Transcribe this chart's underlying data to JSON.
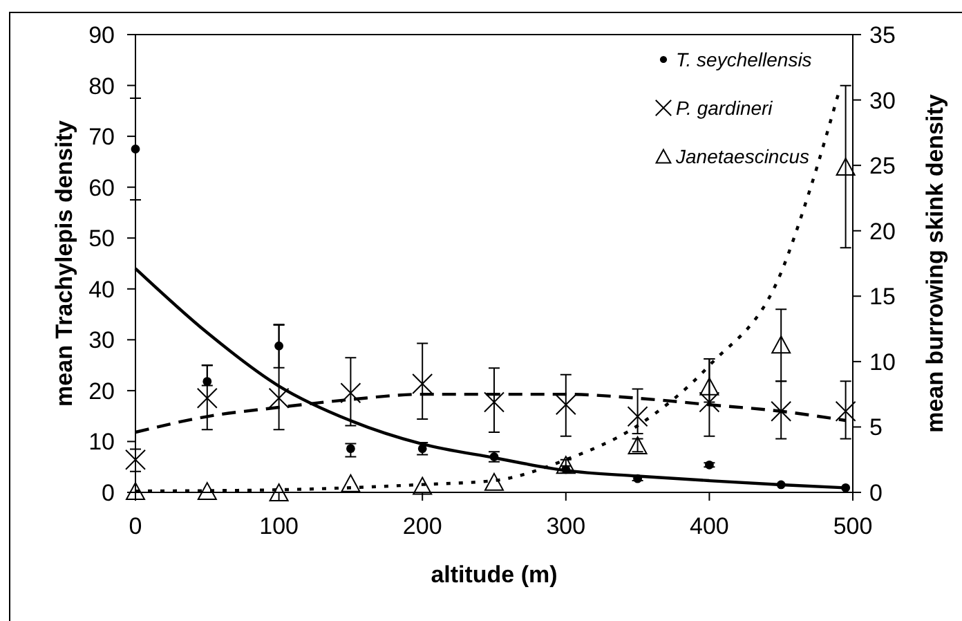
{
  "chart_data": {
    "type": "scatter",
    "xlabel": "altitude (m)",
    "ylabel": "mean Trachylepis density",
    "y2label": "mean burrowing skink density",
    "xlim": [
      0,
      500
    ],
    "xticks": [
      0,
      100,
      200,
      300,
      400,
      500
    ],
    "ylim": [
      0,
      90
    ],
    "yticks": [
      0,
      10,
      20,
      30,
      40,
      50,
      60,
      70,
      80,
      90
    ],
    "y2lim": [
      0,
      35
    ],
    "y2ticks": [
      0,
      5,
      10,
      15,
      20,
      25,
      30,
      35
    ],
    "grid": false,
    "legend": "top right",
    "series": [
      {
        "name": "T. seychellensis",
        "marker": "circle",
        "color": "#000000",
        "x": [
          0,
          50,
          100,
          150,
          200,
          250,
          300,
          350,
          400,
          450,
          495
        ],
        "values": [
          67.5,
          21.8,
          28.8,
          8.6,
          8.6,
          7.0,
          4.5,
          2.7,
          5.4,
          1.5,
          0.9
        ],
        "errors": [
          [
            57.5,
            77.5
          ],
          [
            21,
            25
          ],
          [
            24.5,
            33
          ],
          [
            7,
            9.6
          ],
          [
            7.4,
            9.8
          ],
          [
            6,
            8
          ],
          [
            3.8,
            5.2
          ],
          [
            2.3,
            3.1
          ],
          [
            5,
            5.8
          ],
          null,
          null
        ]
      },
      {
        "name": "P. gardineri",
        "marker": "cross",
        "axis": "y2",
        "color": "#000000",
        "x": [
          0,
          50,
          100,
          150,
          200,
          250,
          300,
          350,
          400,
          450,
          495
        ],
        "values": [
          2.5,
          7.2,
          7.2,
          7.6,
          8.3,
          6.9,
          6.7,
          5.8,
          6.9,
          6.2,
          6.2
        ],
        "errors": [
          [
            1.6,
            3.3
          ],
          [
            4.8,
            9.7
          ],
          [
            4.8,
            12.8
          ],
          [
            5.1,
            10.3
          ],
          [
            5.6,
            11.4
          ],
          [
            4.6,
            9.5
          ],
          [
            4.3,
            9.0
          ],
          [
            4.5,
            7.9
          ],
          [
            4.3,
            10.2
          ],
          [
            4.1,
            8.5
          ],
          [
            4.1,
            8.5
          ]
        ]
      },
      {
        "name": "Janetaescincus",
        "marker": "triangle",
        "axis": "y2",
        "color": "#000000",
        "x": [
          0,
          50,
          100,
          150,
          200,
          250,
          300,
          350,
          400,
          450,
          495
        ],
        "values": [
          0.1,
          0.1,
          0.0,
          0.7,
          0.5,
          0.8,
          2.1,
          3.6,
          8.1,
          11.3,
          24.9
        ],
        "errors": [
          null,
          null,
          null,
          null,
          null,
          null,
          [
            1.7,
            2.5
          ],
          [
            3.1,
            4.1
          ],
          [
            6.9,
            10.2
          ],
          [
            8.5,
            14.0
          ],
          [
            18.7,
            31.1
          ]
        ]
      },
      {
        "type": "line",
        "line_style": "solid",
        "color": "#000000",
        "x": [
          0,
          50,
          100,
          150,
          200,
          250,
          300,
          350,
          400,
          450,
          495
        ],
        "values": [
          44,
          31.4,
          20.9,
          14.1,
          9.5,
          6.8,
          4.3,
          3.2,
          2.3,
          1.5,
          0.9
        ]
      },
      {
        "type": "line",
        "line_style": "dashed",
        "axis": "y2",
        "color": "#000000",
        "x": [
          0,
          50,
          100,
          150,
          200,
          250,
          300,
          350,
          400,
          450,
          495
        ],
        "values": [
          4.6,
          5.8,
          6.5,
          7.1,
          7.5,
          7.5,
          7.5,
          7.2,
          6.7,
          6.2,
          5.5
        ]
      },
      {
        "type": "line",
        "line_style": "dotted",
        "axis": "y2",
        "color": "#000000",
        "x": [
          0,
          100,
          200,
          250,
          300,
          350,
          400,
          450,
          470,
          490
        ],
        "values": [
          0.1,
          0.2,
          0.6,
          0.9,
          2.5,
          5.1,
          9.7,
          16.8,
          23.1,
          30.5
        ]
      }
    ]
  }
}
